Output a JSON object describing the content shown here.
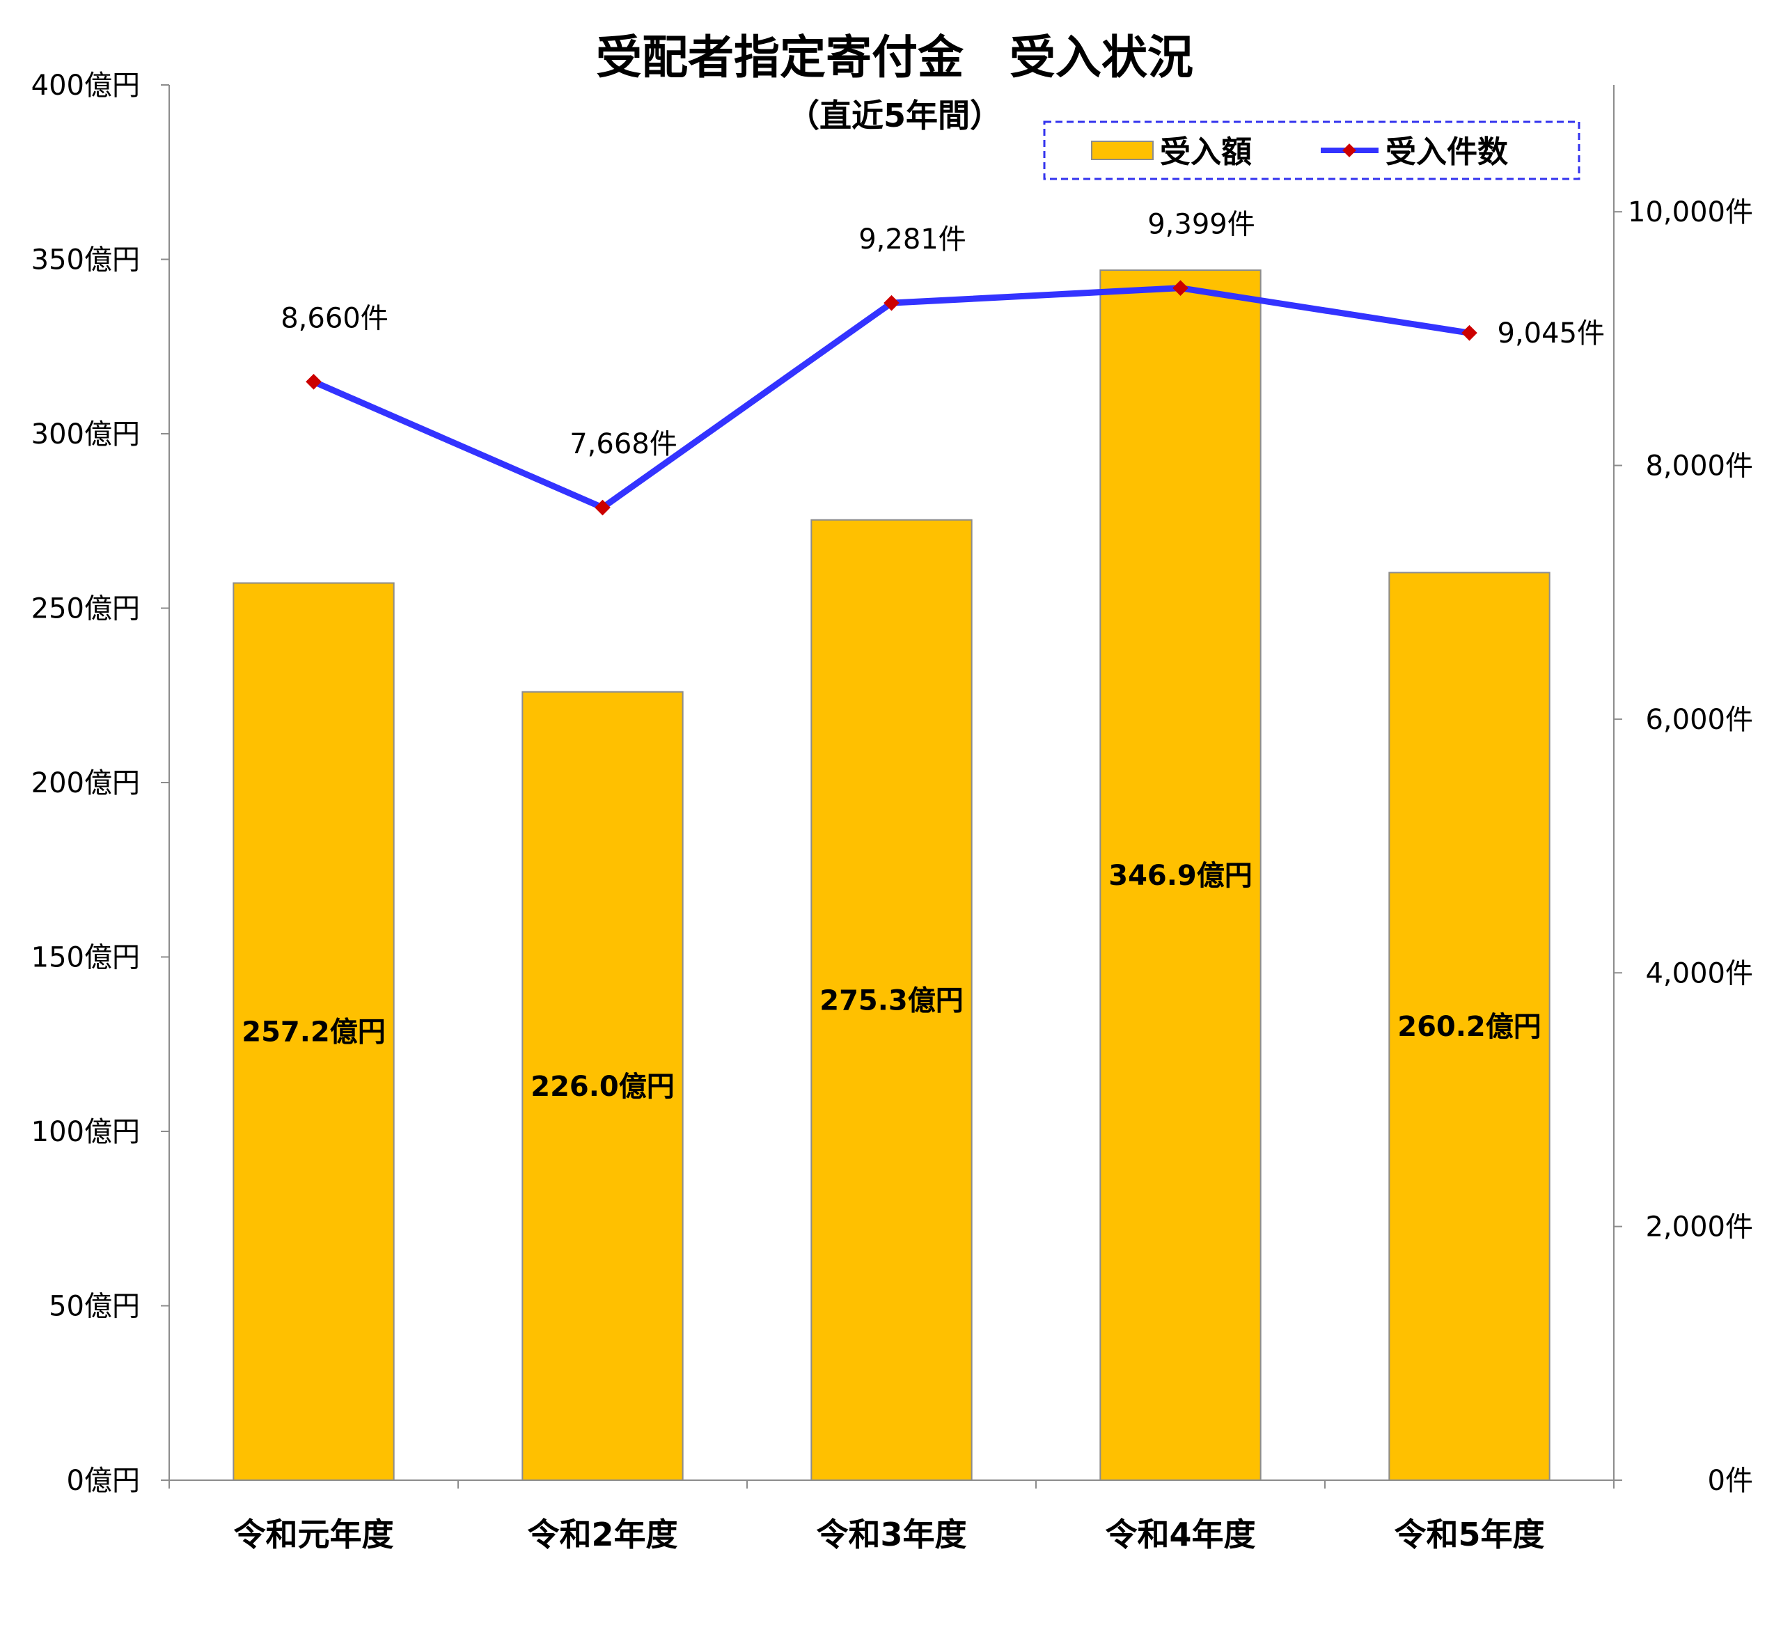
{
  "chart_data": {
    "type": "bar",
    "title": "受配者指定寄付金　受入状況",
    "subtitle": "（直近5年間）",
    "categories": [
      "令和元年度",
      "令和2年度",
      "令和3年度",
      "令和4年度",
      "令和5年度"
    ],
    "series": [
      {
        "name": "受入額",
        "type": "bar",
        "axis": "left",
        "color": "#FFC000",
        "values": [
          257.2,
          226.0,
          275.3,
          346.9,
          260.2
        ],
        "labels": [
          "257.2億円",
          "226.0億円",
          "275.3億円",
          "346.9億円",
          "260.2億円"
        ]
      },
      {
        "name": "受入件数",
        "type": "line",
        "axis": "right",
        "color": "#3333FF",
        "marker_color": "#CC0000",
        "values": [
          8660,
          7668,
          9281,
          9399,
          9045
        ],
        "labels": [
          "8,660件",
          "7,668件",
          "9,281件",
          "9,399件",
          "9,045件"
        ]
      }
    ],
    "y_left": {
      "ylim": [
        0,
        400
      ],
      "ticks": [
        0,
        50,
        100,
        150,
        200,
        250,
        300,
        350,
        400
      ],
      "tick_labels": [
        "0億円",
        "50億円",
        "100億円",
        "150億円",
        "200億円",
        "250億円",
        "300億円",
        "350億円",
        "400億円"
      ]
    },
    "y_right": {
      "ylim": [
        0,
        11000
      ],
      "ticks": [
        0,
        2000,
        4000,
        6000,
        8000,
        10000
      ],
      "tick_labels": [
        "0件",
        "2,000件",
        "4,000件",
        "6,000件",
        "8,000件",
        "10,000件"
      ]
    },
    "legend": {
      "position": "top-right",
      "entries": [
        "受入額",
        "受入件数"
      ]
    },
    "grid": false
  }
}
